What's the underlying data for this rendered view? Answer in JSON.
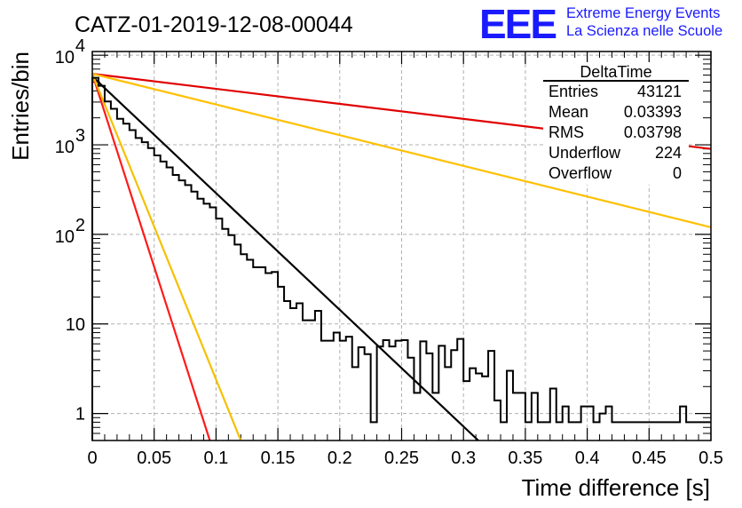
{
  "title": "CATZ-01-2019-12-08-00044",
  "logo": {
    "mark": "EEE",
    "line1": "Extreme Energy Events",
    "line2": "La Scienza nelle Scuole",
    "color": "#1a1aff"
  },
  "stats": {
    "name": "DeltaTime",
    "rows": [
      {
        "label": "Entries",
        "value": "43121"
      },
      {
        "label": "Mean",
        "value": "0.03393"
      },
      {
        "label": "RMS",
        "value": "0.03798"
      },
      {
        "label": "Underflow",
        "value": "224"
      },
      {
        "label": "Overflow",
        "value": "0"
      }
    ]
  },
  "chart_data": {
    "type": "line",
    "xlabel": "Time difference [s]",
    "ylabel": "Entries/bin",
    "xlim": [
      0,
      0.5
    ],
    "ylim": [
      0.5,
      11000
    ],
    "yscale": "log",
    "grid": true,
    "x_ticks": [
      {
        "v": 0,
        "label": "0"
      },
      {
        "v": 0.05,
        "label": "0.05"
      },
      {
        "v": 0.1,
        "label": "0.1"
      },
      {
        "v": 0.15,
        "label": "0.15"
      },
      {
        "v": 0.2,
        "label": "0.2"
      },
      {
        "v": 0.25,
        "label": "0.25"
      },
      {
        "v": 0.3,
        "label": "0.3"
      },
      {
        "v": 0.35,
        "label": "0.35"
      },
      {
        "v": 0.4,
        "label": "0.4"
      },
      {
        "v": 0.45,
        "label": "0.45"
      },
      {
        "v": 0.5,
        "label": "0.5"
      }
    ],
    "y_ticks": [
      {
        "v": 1,
        "label": "1"
      },
      {
        "v": 10,
        "label": "10"
      },
      {
        "v": 100,
        "label": "10",
        "exp": "2"
      },
      {
        "v": 1000,
        "label": "10",
        "exp": "3"
      },
      {
        "v": 10000,
        "label": "10",
        "exp": "4"
      }
    ],
    "histogram": {
      "color": "#000000",
      "bin_width": 0.005,
      "values": [
        5600,
        4550,
        3050,
        2520,
        1950,
        1720,
        1460,
        1190,
        1070,
        920,
        760,
        650,
        560,
        460,
        400,
        355,
        300,
        250,
        220,
        200,
        150,
        115,
        98,
        77,
        60,
        52,
        43,
        43,
        37,
        38,
        26,
        18,
        15,
        17,
        11,
        11,
        14,
        6.5,
        6.5,
        8,
        6.5,
        7.2,
        3.3,
        5.5,
        4.6,
        0.8,
        5.6,
        6.6,
        5.6,
        6.5,
        6.6,
        4.2,
        1.7,
        6.4,
        4.7,
        1.7,
        5.7,
        3.3,
        5.1,
        6.8,
        2.3,
        3.2,
        2.8,
        2.6,
        5.0,
        1.4,
        0.8,
        3.0,
        1.7,
        1.7,
        0.8,
        1.7,
        0.8,
        0.8,
        1.9,
        0.8,
        1.2,
        0.8,
        0.8,
        1.2,
        1.2,
        0.8,
        1.0,
        1.2,
        0.8,
        0.8,
        0.8,
        0.8,
        0.8,
        0.8,
        0.8,
        0.8,
        0.8,
        0.8,
        0.8,
        1.2,
        0.8,
        0.8,
        0.8,
        0.8
      ]
    },
    "fits": [
      {
        "color": "#000000",
        "y0": 5800,
        "y_end": 0.5,
        "x_end": 0.312
      },
      {
        "color": "#ff1a1a",
        "y0": 6200,
        "y_end": 0.5,
        "x_end": 0.095
      },
      {
        "color": "#f5c000",
        "y0": 6200,
        "y_end": 0.5,
        "x_end": 0.12
      },
      {
        "color": "#e00000",
        "y0": 6200,
        "y_end": 900,
        "x_end": 0.5
      },
      {
        "color": "#ffc000",
        "y0": 6200,
        "y_end": 120,
        "x_end": 0.5
      }
    ]
  }
}
